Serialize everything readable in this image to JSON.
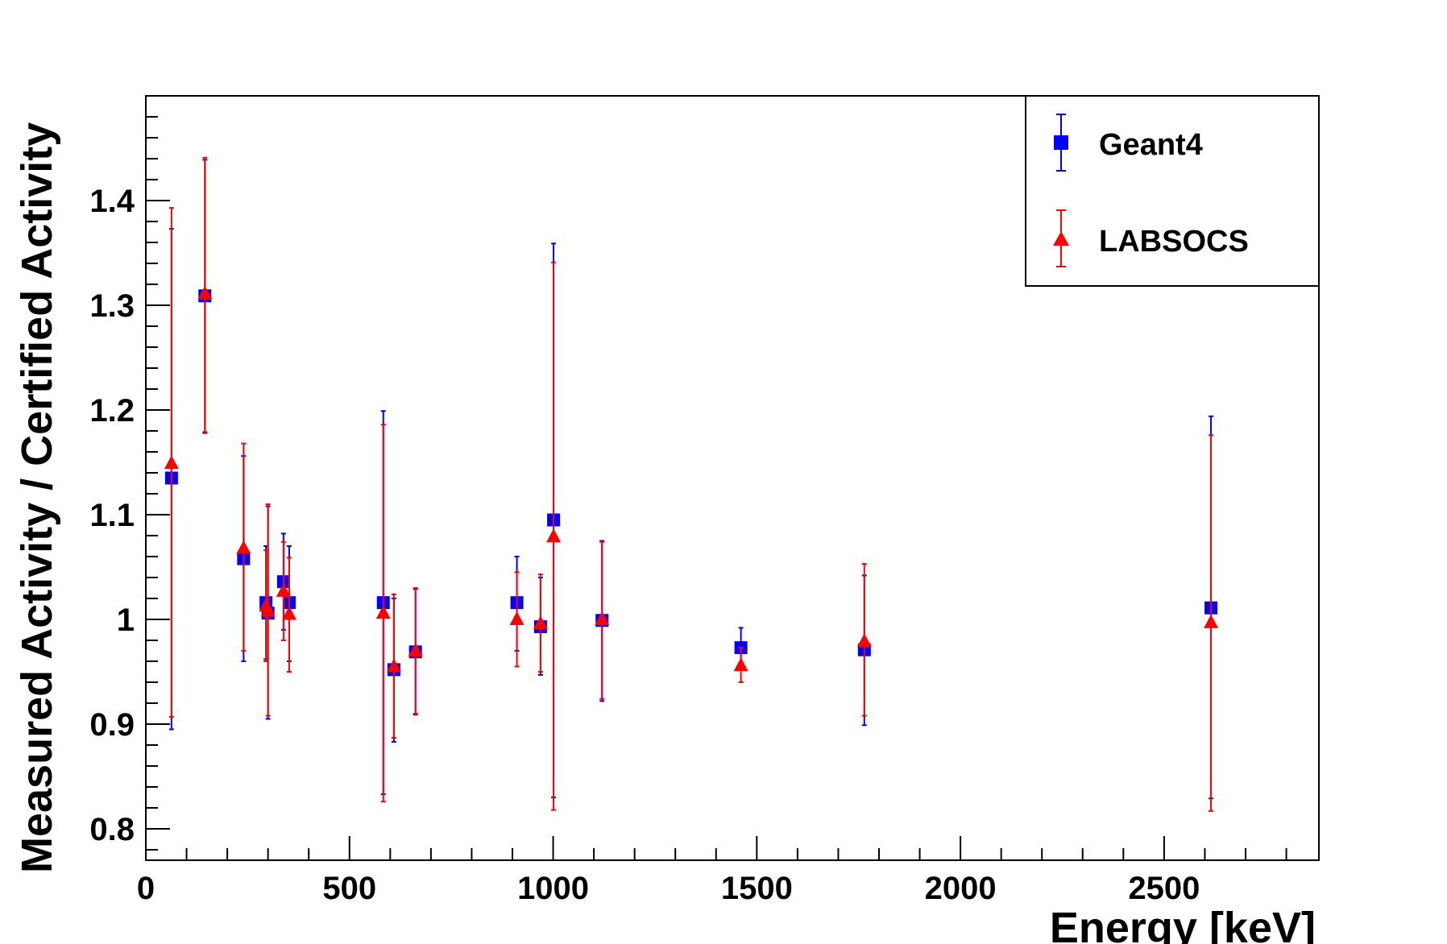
{
  "chart_data": {
    "type": "scatter",
    "xlabel": "Energy [keV]",
    "ylabel": "Measured Activity / Certified Activity",
    "xlim": [
      0,
      2880
    ],
    "ylim": [
      0.77,
      1.5
    ],
    "x_ticks": [
      "0",
      "500",
      "1000",
      "1500",
      "2000",
      "2500"
    ],
    "y_ticks": [
      "0.8",
      "0.9",
      "1",
      "1.1",
      "1.2",
      "1.3",
      "1.4"
    ],
    "grid": false,
    "legend_position": "top-right",
    "series": [
      {
        "name": "Geant4",
        "color": "#0000ff",
        "marker": "square",
        "points": [
          {
            "x": 63,
            "y": 1.135,
            "lo": 0.895,
            "hi": 1.373
          },
          {
            "x": 145,
            "y": 1.309,
            "lo": 1.178,
            "hi": 1.439
          },
          {
            "x": 240,
            "y": 1.058,
            "lo": 0.96,
            "hi": 1.156
          },
          {
            "x": 295,
            "y": 1.016,
            "lo": 0.962,
            "hi": 1.07
          },
          {
            "x": 300,
            "y": 1.006,
            "lo": 0.905,
            "hi": 1.108
          },
          {
            "x": 338,
            "y": 1.036,
            "lo": 0.99,
            "hi": 1.082
          },
          {
            "x": 352,
            "y": 1.016,
            "lo": 0.96,
            "hi": 1.07
          },
          {
            "x": 583,
            "y": 1.016,
            "lo": 0.833,
            "hi": 1.199
          },
          {
            "x": 609,
            "y": 0.952,
            "lo": 0.883,
            "hi": 1.02
          },
          {
            "x": 662,
            "y": 0.969,
            "lo": 0.909,
            "hi": 1.029
          },
          {
            "x": 911,
            "y": 1.016,
            "lo": 0.97,
            "hi": 1.06
          },
          {
            "x": 969,
            "y": 0.993,
            "lo": 0.947,
            "hi": 1.04
          },
          {
            "x": 1001,
            "y": 1.095,
            "lo": 0.83,
            "hi": 1.359
          },
          {
            "x": 1120,
            "y": 0.999,
            "lo": 0.922,
            "hi": 1.075
          },
          {
            "x": 1461,
            "y": 0.973,
            "lo": 0.955,
            "hi": 0.992
          },
          {
            "x": 1764,
            "y": 0.971,
            "lo": 0.899,
            "hi": 1.042
          },
          {
            "x": 2615,
            "y": 1.011,
            "lo": 0.829,
            "hi": 1.194
          }
        ]
      },
      {
        "name": "LABSOCS",
        "color": "#ff0000",
        "marker": "triangle",
        "points": [
          {
            "x": 63,
            "y": 1.149,
            "lo": 0.907,
            "hi": 1.393
          },
          {
            "x": 145,
            "y": 1.311,
            "lo": 1.179,
            "hi": 1.441
          },
          {
            "x": 240,
            "y": 1.068,
            "lo": 0.97,
            "hi": 1.168
          },
          {
            "x": 295,
            "y": 1.013,
            "lo": 0.96,
            "hi": 1.066
          },
          {
            "x": 300,
            "y": 1.008,
            "lo": 0.908,
            "hi": 1.11
          },
          {
            "x": 338,
            "y": 1.027,
            "lo": 0.98,
            "hi": 1.074
          },
          {
            "x": 352,
            "y": 1.005,
            "lo": 0.95,
            "hi": 1.059
          },
          {
            "x": 583,
            "y": 1.006,
            "lo": 0.826,
            "hi": 1.186
          },
          {
            "x": 609,
            "y": 0.955,
            "lo": 0.887,
            "hi": 1.024
          },
          {
            "x": 662,
            "y": 0.97,
            "lo": 0.91,
            "hi": 1.03
          },
          {
            "x": 911,
            "y": 1.0,
            "lo": 0.955,
            "hi": 1.045
          },
          {
            "x": 969,
            "y": 0.996,
            "lo": 0.95,
            "hi": 1.043
          },
          {
            "x": 1001,
            "y": 1.079,
            "lo": 0.818,
            "hi": 1.341
          },
          {
            "x": 1120,
            "y": 1.0,
            "lo": 0.924,
            "hi": 1.074
          },
          {
            "x": 1461,
            "y": 0.956,
            "lo": 0.94,
            "hi": 0.973
          },
          {
            "x": 1764,
            "y": 0.979,
            "lo": 0.908,
            "hi": 1.053
          },
          {
            "x": 2615,
            "y": 0.997,
            "lo": 0.817,
            "hi": 1.176
          }
        ]
      }
    ]
  }
}
